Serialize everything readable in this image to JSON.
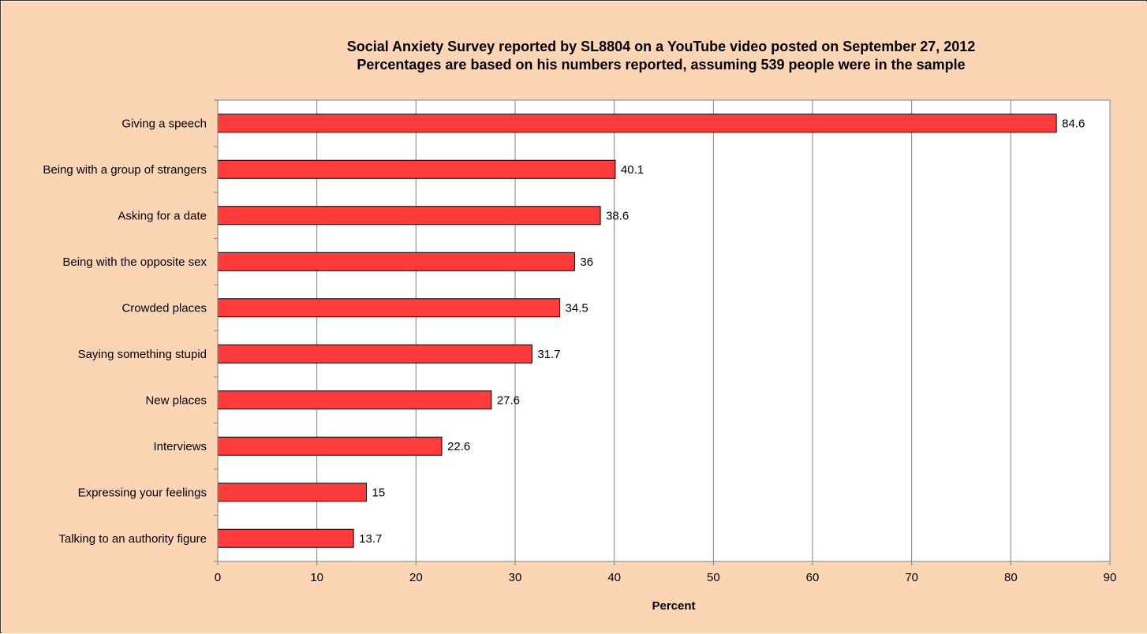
{
  "chart_data": {
    "type": "bar",
    "orientation": "horizontal",
    "title_lines": [
      "Social Anxiety Survey reported by SL8804 on a YouTube video posted on September 27, 2012",
      "Percentages are based on his numbers reported, assuming 539 people were in the sample"
    ],
    "categories": [
      "Giving a speech",
      "Being with a group of strangers",
      "Asking for a date",
      "Being with the opposite sex",
      "Crowded places",
      "Saying something stupid",
      "New places",
      "Interviews",
      "Expressing your feelings",
      "Talking to an authority figure"
    ],
    "values": [
      84.6,
      40.1,
      38.6,
      36,
      34.5,
      31.7,
      27.6,
      22.6,
      15,
      13.7
    ],
    "data_labels": [
      "84.6",
      "40.1",
      "38.6",
      "36",
      "34.5",
      "31.7",
      "27.6",
      "22.6",
      "15",
      "13.7"
    ],
    "xlabel": "Percent",
    "ylabel": "",
    "xlim": [
      0,
      90
    ],
    "x_ticks": [
      0,
      10,
      20,
      30,
      40,
      50,
      60,
      70,
      80,
      90
    ],
    "grid": "vertical",
    "legend": "none",
    "colors": {
      "background": "#fcd5b5",
      "plot_area": "#ffffff",
      "bar_fill": "#ff3b3b",
      "bar_stroke": "#000000",
      "grid": "#808080",
      "text": "#000000"
    }
  }
}
